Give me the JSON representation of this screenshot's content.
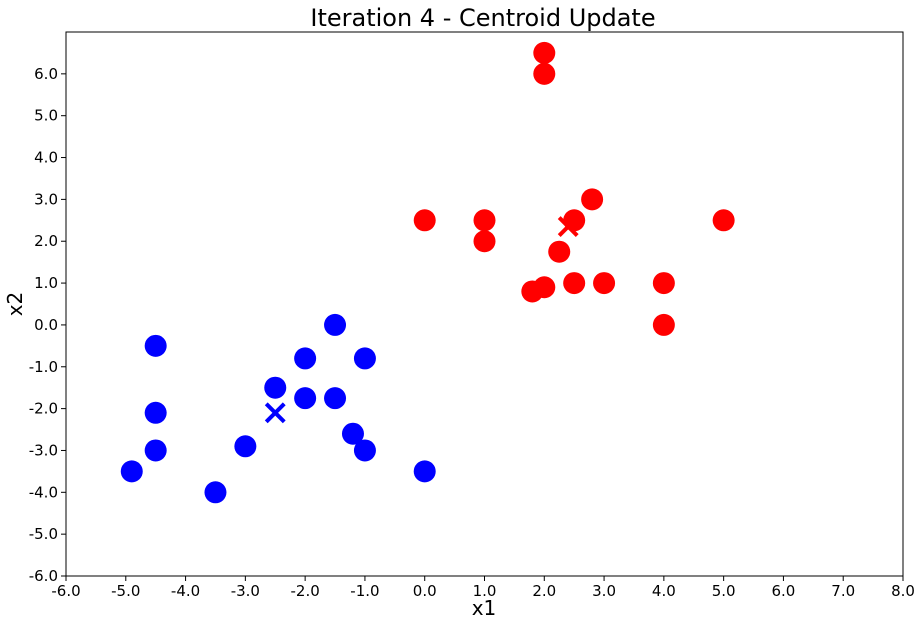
{
  "chart_data": {
    "type": "scatter",
    "title": "Iteration 4 - Centroid Update",
    "xlabel": "x1",
    "ylabel": "x2",
    "xlim": [
      -6,
      8
    ],
    "ylim": [
      -6,
      7
    ],
    "xticks": [
      "-6.0",
      "-5.0",
      "-4.0",
      "-3.0",
      "-2.0",
      "-1.0",
      "0.0",
      "1.0",
      "2.0",
      "3.0",
      "4.0",
      "5.0",
      "6.0",
      "7.0",
      "8.0"
    ],
    "yticks": [
      "-6.0",
      "-5.0",
      "-4.0",
      "-3.0",
      "-2.0",
      "-1.0",
      "0.0",
      "1.0",
      "2.0",
      "3.0",
      "4.0",
      "5.0",
      "6.0"
    ],
    "grid": false,
    "series": [
      {
        "color": "#0000ff",
        "marker": "circle",
        "points": [
          [
            -4.5,
            -0.5
          ],
          [
            -4.5,
            -2.1
          ],
          [
            -4.5,
            -3.0
          ],
          [
            -4.9,
            -3.5
          ],
          [
            -3.5,
            -4.0
          ],
          [
            -3.0,
            -2.9
          ],
          [
            -2.5,
            -1.5
          ],
          [
            -2.0,
            -0.8
          ],
          [
            -2.0,
            -1.75
          ],
          [
            -1.5,
            0.0
          ],
          [
            -1.5,
            -1.75
          ],
          [
            -1.0,
            -0.8
          ],
          [
            -1.2,
            -2.6
          ],
          [
            -1.0,
            -3.0
          ],
          [
            0.0,
            -3.5
          ]
        ]
      },
      {
        "color": "#ff0000",
        "marker": "circle",
        "points": [
          [
            2.0,
            6.5
          ],
          [
            2.0,
            6.0
          ],
          [
            0.0,
            2.5
          ],
          [
            1.0,
            2.5
          ],
          [
            1.0,
            2.0
          ],
          [
            2.8,
            3.0
          ],
          [
            2.5,
            2.5
          ],
          [
            2.25,
            1.75
          ],
          [
            5.0,
            2.5
          ],
          [
            1.8,
            0.8
          ],
          [
            2.0,
            0.9
          ],
          [
            2.5,
            1.0
          ],
          [
            3.0,
            1.0
          ],
          [
            4.0,
            1.0
          ],
          [
            4.0,
            0.0
          ]
        ]
      }
    ],
    "centroids": [
      {
        "color": "#0000ff",
        "marker": "x",
        "x": -2.5,
        "y": -2.1
      },
      {
        "color": "#ff0000",
        "marker": "x",
        "x": 2.4,
        "y": 2.35
      }
    ]
  }
}
